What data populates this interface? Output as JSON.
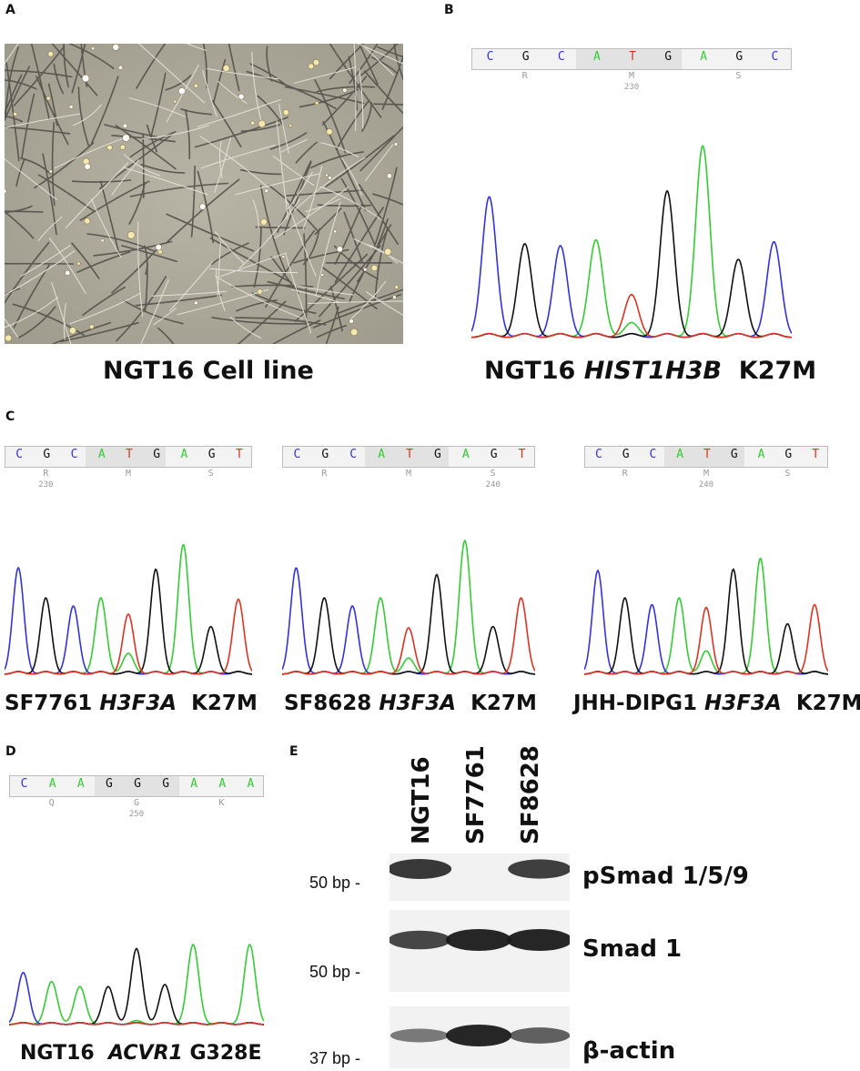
{
  "panel_letters": {
    "a": "A",
    "b": "B",
    "c": "C",
    "d": "D",
    "e": "E"
  },
  "panel_a": {
    "caption": "NGT16 Cell line"
  },
  "panel_b": {
    "bases": [
      "C",
      "G",
      "C",
      "A",
      "T",
      "G",
      "A",
      "G",
      "C"
    ],
    "aa": [
      "R",
      "M",
      "S"
    ],
    "position": "230",
    "caption_prefix": "NGT16",
    "caption_gene": "HIST1H3B",
    "caption_mut": "K27M"
  },
  "panel_c": [
    {
      "bases": [
        "C",
        "G",
        "C",
        "A",
        "T",
        "G",
        "A",
        "G",
        "T"
      ],
      "aa": [
        "R",
        "M",
        "S"
      ],
      "position": "230",
      "caption_prefix": "SF7761",
      "caption_gene": "H3F3A",
      "caption_mut": "K27M"
    },
    {
      "bases": [
        "C",
        "G",
        "C",
        "A",
        "T",
        "G",
        "A",
        "G",
        "T"
      ],
      "aa": [
        "R",
        "M",
        "S"
      ],
      "position": "240",
      "caption_prefix": "SF8628",
      "caption_gene": "H3F3A",
      "caption_mut": "K27M"
    },
    {
      "bases": [
        "C",
        "G",
        "C",
        "A",
        "T",
        "G",
        "A",
        "G",
        "T"
      ],
      "aa": [
        "R",
        "M",
        "S"
      ],
      "position": "240",
      "caption_prefix": "JHH-DIPG1",
      "caption_gene": "H3F3A",
      "caption_mut": "K27M"
    }
  ],
  "panel_d": {
    "bases": [
      "C",
      "A",
      "A",
      "G",
      "G",
      "G",
      "A",
      "A",
      "A"
    ],
    "aa": [
      "Q",
      "G",
      "K"
    ],
    "position": "250",
    "caption_prefix": "NGT16",
    "caption_gene": "ACVR1",
    "caption_mut": "G328E"
  },
  "panel_e": {
    "lanes": [
      "NGT16",
      "SF7761",
      "SF8628"
    ],
    "blots": [
      {
        "protein": "pSmad 1/5/9",
        "marker": "50 bp -",
        "band_intensity": [
          0.85,
          0.0,
          0.8
        ]
      },
      {
        "protein": "Smad 1",
        "marker": "50 bp -",
        "band_intensity": [
          0.75,
          1.0,
          1.0
        ]
      },
      {
        "protein": "β-actin",
        "marker": "37 bp -",
        "band_intensity": [
          0.35,
          1.0,
          0.55
        ]
      }
    ]
  },
  "colors": {
    "A": "#33cc33",
    "C": "#3333dd",
    "G": "#111111",
    "T": "#dd3322"
  }
}
